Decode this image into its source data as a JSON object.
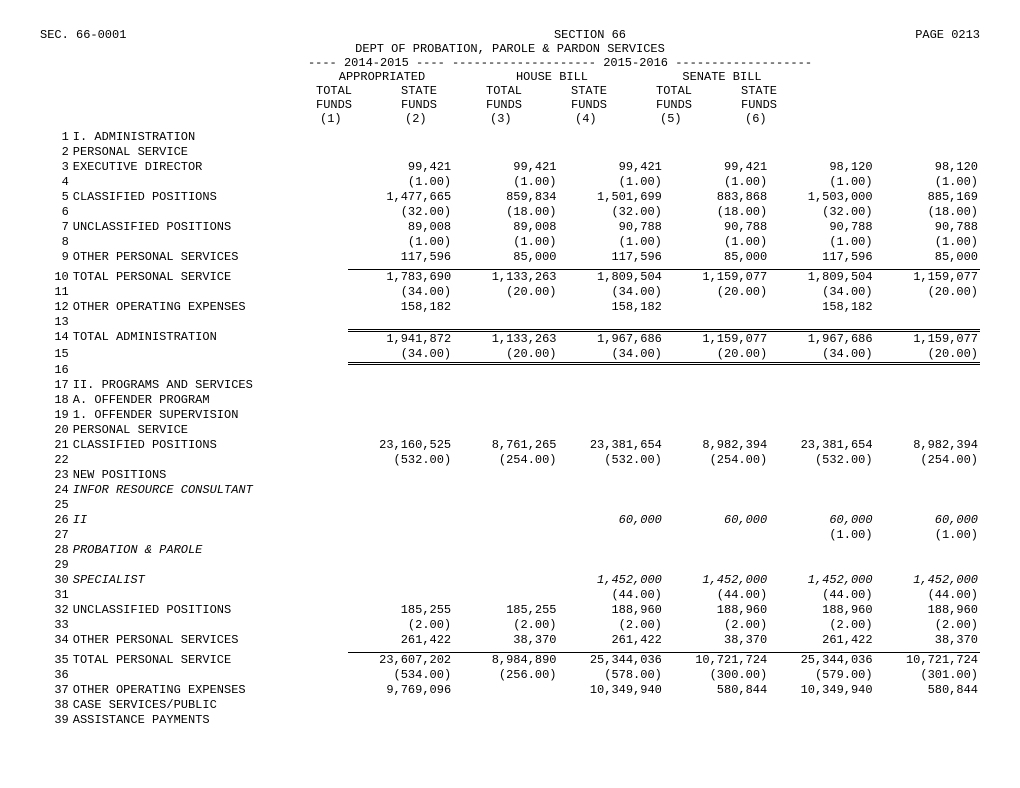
{
  "header": {
    "sec_label": "SEC.  66-0001",
    "section": "SECTION  66",
    "page": "PAGE 0213",
    "dept": "DEPT OF PROBATION, PAROLE & PARDON SERVICES",
    "period_line": "---- 2014-2015 ----   -------------------- 2015-2016 -------------------",
    "group1": "APPROPRIATED",
    "group2": "HOUSE BILL",
    "group3": "SENATE BILL",
    "h_total": "TOTAL",
    "h_state": "STATE",
    "h_funds": "FUNDS",
    "c1": "(1)",
    "c2": "(2)",
    "c3": "(3)",
    "c4": "(4)",
    "c5": "(5)",
    "c6": "(6)"
  },
  "rows": [
    {
      "n": "1",
      "d": "I. ADMINISTRATION"
    },
    {
      "n": "2",
      "d": "  PERSONAL SERVICE"
    },
    {
      "n": "3",
      "d": "   EXECUTIVE DIRECTOR",
      "v": [
        "99,421",
        "99,421",
        "99,421",
        "99,421",
        "98,120",
        "98,120"
      ]
    },
    {
      "n": "4",
      "d": "",
      "v": [
        "(1.00)",
        "(1.00)",
        "(1.00)",
        "(1.00)",
        "(1.00)",
        "(1.00)"
      ]
    },
    {
      "n": "5",
      "d": "   CLASSIFIED POSITIONS",
      "v": [
        "1,477,665",
        "859,834",
        "1,501,699",
        "883,868",
        "1,503,000",
        "885,169"
      ]
    },
    {
      "n": "6",
      "d": "",
      "v": [
        "(32.00)",
        "(18.00)",
        "(32.00)",
        "(18.00)",
        "(32.00)",
        "(18.00)"
      ]
    },
    {
      "n": "7",
      "d": "   UNCLASSIFIED POSITIONS",
      "v": [
        "89,008",
        "89,008",
        "90,788",
        "90,788",
        "90,788",
        "90,788"
      ]
    },
    {
      "n": "8",
      "d": "",
      "v": [
        "(1.00)",
        "(1.00)",
        "(1.00)",
        "(1.00)",
        "(1.00)",
        "(1.00)"
      ]
    },
    {
      "n": "9",
      "d": "   OTHER PERSONAL SERVICES",
      "v": [
        "117,596",
        "85,000",
        "117,596",
        "85,000",
        "117,596",
        "85,000"
      ]
    },
    {
      "n": "10",
      "d": "   TOTAL PERSONAL SERVICE",
      "v": [
        "1,783,690",
        "1,133,263",
        "1,809,504",
        "1,159,077",
        "1,809,504",
        "1,159,077"
      ],
      "cls": "thin-top"
    },
    {
      "n": "11",
      "d": "",
      "v": [
        "(34.00)",
        "(20.00)",
        "(34.00)",
        "(20.00)",
        "(34.00)",
        "(20.00)"
      ]
    },
    {
      "n": "12",
      "d": "  OTHER OPERATING EXPENSES",
      "v": [
        "158,182",
        "",
        "158,182",
        "",
        "158,182",
        ""
      ]
    },
    {
      "n": "13",
      "d": ""
    },
    {
      "n": "14",
      "d": "TOTAL ADMINISTRATION",
      "v": [
        "1,941,872",
        "1,133,263",
        "1,967,686",
        "1,159,077",
        "1,967,686",
        "1,159,077"
      ],
      "cls": "dbl-top"
    },
    {
      "n": "15",
      "d": "",
      "v": [
        "(34.00)",
        "(20.00)",
        "(34.00)",
        "(20.00)",
        "(34.00)",
        "(20.00)"
      ]
    },
    {
      "n": "16",
      "d": "",
      "cls": "dbl-top",
      "v": [
        "",
        "",
        "",
        "",
        "",
        ""
      ]
    },
    {
      "n": "17",
      "d": "II. PROGRAMS AND SERVICES"
    },
    {
      "n": "18",
      "d": "     A. OFFENDER PROGRAM"
    },
    {
      "n": "19",
      "d": "  1. OFFENDER SUPERVISION"
    },
    {
      "n": "20",
      "d": "   PERSONAL SERVICE"
    },
    {
      "n": "21",
      "d": "    CLASSIFIED POSITIONS",
      "v": [
        "23,160,525",
        "8,761,265",
        "23,381,654",
        "8,982,394",
        "23,381,654",
        "8,982,394"
      ]
    },
    {
      "n": "22",
      "d": "",
      "v": [
        "(532.00)",
        "(254.00)",
        "(532.00)",
        "(254.00)",
        "(532.00)",
        "(254.00)"
      ]
    },
    {
      "n": "23",
      "d": "   NEW POSITIONS"
    },
    {
      "n": "24",
      "d": "    INFOR RESOURCE CONSULTANT",
      "it": true
    },
    {
      "n": "25",
      "d": ""
    },
    {
      "n": "26",
      "d": "    II",
      "it": true,
      "v": [
        "",
        "",
        "60,000",
        "60,000",
        "60,000",
        "60,000"
      ]
    },
    {
      "n": "27",
      "d": "",
      "v": [
        "",
        "",
        "",
        "",
        "(1.00)",
        "(1.00)"
      ]
    },
    {
      "n": "28",
      "d": "    PROBATION & PAROLE",
      "it": true
    },
    {
      "n": "29",
      "d": ""
    },
    {
      "n": "30",
      "d": "    SPECIALIST",
      "it": true,
      "v": [
        "",
        "",
        "1,452,000",
        "1,452,000",
        "1,452,000",
        "1,452,000"
      ]
    },
    {
      "n": "31",
      "d": "",
      "v": [
        "",
        "",
        "(44.00)",
        "(44.00)",
        "(44.00)",
        "(44.00)"
      ]
    },
    {
      "n": "32",
      "d": "    UNCLASSIFIED POSITIONS",
      "v": [
        "185,255",
        "185,255",
        "188,960",
        "188,960",
        "188,960",
        "188,960"
      ]
    },
    {
      "n": "33",
      "d": "",
      "v": [
        "(2.00)",
        "(2.00)",
        "(2.00)",
        "(2.00)",
        "(2.00)",
        "(2.00)"
      ]
    },
    {
      "n": "34",
      "d": "   OTHER PERSONAL SERVICES",
      "v": [
        "261,422",
        "38,370",
        "261,422",
        "38,370",
        "261,422",
        "38,370"
      ]
    },
    {
      "n": "35",
      "d": "    TOTAL PERSONAL SERVICE",
      "v": [
        "23,607,202",
        "8,984,890",
        "25,344,036",
        "10,721,724",
        "25,344,036",
        "10,721,724"
      ],
      "cls": "thin-top"
    },
    {
      "n": "36",
      "d": "",
      "v": [
        "(534.00)",
        "(256.00)",
        "(578.00)",
        "(300.00)",
        "(579.00)",
        "(301.00)"
      ]
    },
    {
      "n": "37",
      "d": "   OTHER OPERATING EXPENSES",
      "v": [
        "9,769,096",
        "",
        "10,349,940",
        "580,844",
        "10,349,940",
        "580,844"
      ]
    },
    {
      "n": "38",
      "d": "   CASE SERVICES/PUBLIC"
    },
    {
      "n": "39",
      "d": "    ASSISTANCE PAYMENTS"
    }
  ]
}
